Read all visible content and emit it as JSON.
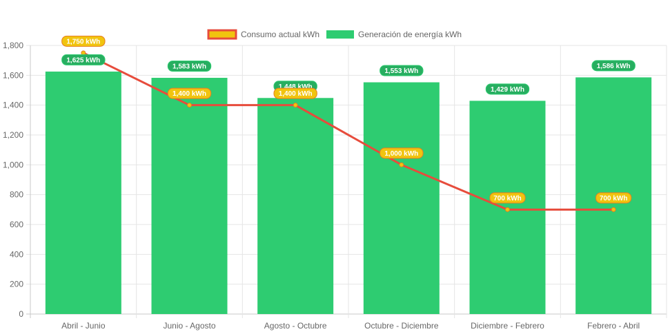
{
  "chart_data": {
    "type": "bar",
    "categories": [
      "Abril - Junio",
      "Junio - Agosto",
      "Agosto - Octubre",
      "Octubre - Diciembre",
      "Diciembre - Febrero",
      "Febrero - Abril"
    ],
    "series": [
      {
        "name": "Consumo actual kWh",
        "type": "line",
        "values": [
          1750,
          1400,
          1400,
          1000,
          700,
          700
        ],
        "labels": [
          "1,750 kWh",
          "1,400 kWh",
          "1,400 kWh",
          "1,000 kWh",
          "700 kWh",
          "700 kWh"
        ],
        "color": "#e74c3c",
        "fill": "#f1c40f"
      },
      {
        "name": "Generación de energía kWh",
        "type": "bar",
        "values": [
          1625,
          1583,
          1448,
          1553,
          1429,
          1586
        ],
        "labels": [
          "1,625 kWh",
          "1,583 kWh",
          "1,448 kWh",
          "1,553 kWh",
          "1,429 kWh",
          "1,586 kWh"
        ],
        "color": "#2ecc71",
        "label_color": "#27ae60"
      }
    ],
    "ylim": [
      0,
      1800
    ],
    "yticks": [
      0,
      200,
      400,
      600,
      800,
      1000,
      1200,
      1400,
      1600,
      1800
    ],
    "ytick_labels": [
      "0",
      "200",
      "400",
      "600",
      "800",
      "1,000",
      "1,200",
      "1,400",
      "1,600",
      "1,800"
    ],
    "grid": true,
    "legend": "top"
  }
}
